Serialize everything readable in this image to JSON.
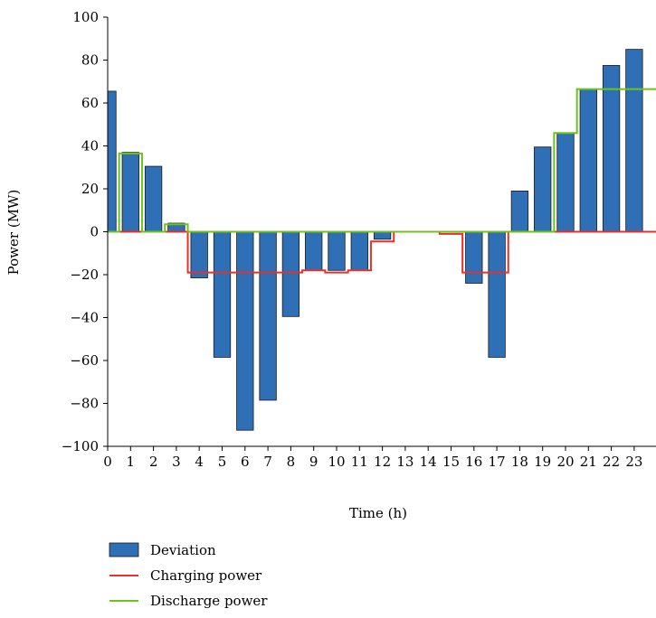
{
  "chart_data": {
    "type": "bar",
    "xlabel": "Time (h)",
    "ylabel": "Power (MW)",
    "ylim": [
      -100,
      100
    ],
    "yticks": [
      100,
      80,
      60,
      40,
      20,
      0,
      -20,
      -40,
      -60,
      -80,
      -100
    ],
    "ytick_labels": [
      "100",
      "80",
      "60",
      "40",
      "20",
      "0",
      "−20",
      "−40",
      "−60",
      "−80",
      "−100"
    ],
    "xlim": [
      0,
      24
    ],
    "xticks": [
      0,
      1,
      2,
      3,
      4,
      5,
      6,
      7,
      8,
      9,
      10,
      11,
      12,
      13,
      14,
      15,
      16,
      17,
      18,
      19,
      20,
      21,
      22,
      23
    ],
    "legend_position": "bottom-left",
    "grid": false,
    "series": [
      {
        "name": "Deviation",
        "type": "bar",
        "color": "#2e6fb5",
        "hours": [
          0,
          1,
          2,
          3,
          4,
          5,
          6,
          7,
          8,
          9,
          10,
          11,
          12,
          13,
          14,
          15,
          16,
          17,
          18,
          19,
          20,
          21,
          22,
          23
        ],
        "values": [
          65.5,
          37,
          30.5,
          4,
          -21.5,
          -58.5,
          -92.5,
          -78.5,
          -39.5,
          -18,
          -18,
          -18,
          -3.5,
          0,
          0,
          0,
          -24,
          -58.5,
          19,
          39.5,
          46,
          66.5,
          77.5,
          85
        ]
      },
      {
        "name": "Charging power",
        "type": "step",
        "color": "#e8312a",
        "hours": [
          0,
          1,
          2,
          3,
          4,
          5,
          6,
          7,
          8,
          9,
          10,
          11,
          12,
          13,
          14,
          15,
          16,
          17,
          18,
          19,
          20,
          21,
          22,
          23
        ],
        "values": [
          0,
          0,
          0,
          0,
          -19,
          -19,
          -19,
          -19,
          -19,
          -18,
          -19,
          -18,
          -4.5,
          0,
          0,
          -1,
          -19,
          -19,
          0,
          0,
          0,
          0,
          0,
          0
        ]
      },
      {
        "name": "Discharge power",
        "type": "step",
        "color": "#6cc417",
        "hours": [
          0,
          1,
          2,
          3,
          4,
          5,
          6,
          7,
          8,
          9,
          10,
          11,
          12,
          13,
          14,
          15,
          16,
          17,
          18,
          19,
          20,
          21,
          22,
          23
        ],
        "values": [
          0,
          36.5,
          0,
          3.5,
          0,
          0,
          0,
          0,
          0,
          0,
          0,
          0,
          0,
          0,
          0,
          0,
          0,
          0,
          0,
          0,
          46,
          66.5,
          66.5,
          66.5
        ]
      }
    ]
  }
}
